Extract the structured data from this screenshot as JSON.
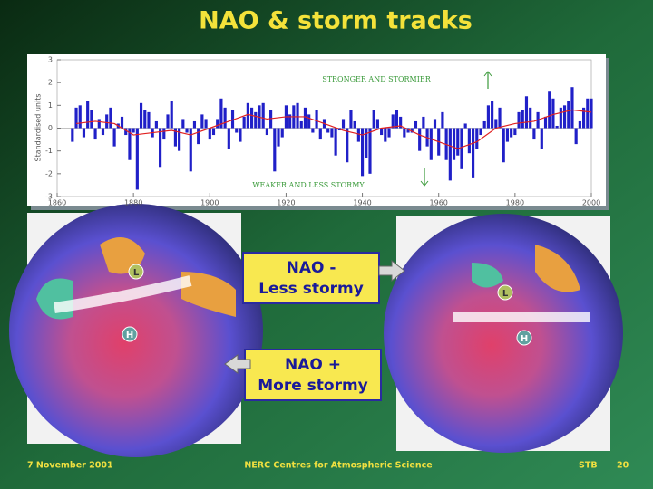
{
  "title": "NAO & storm tracks",
  "chart_data": {
    "type": "bar",
    "y_label": "Standardised units",
    "annotations": [
      "STRONGER AND STORMIER",
      "WEAKER AND LESS STORMY"
    ],
    "xlim": [
      1860,
      2000
    ],
    "xticks": [
      1860,
      1880,
      1900,
      1920,
      1940,
      1960,
      1980,
      2000
    ],
    "ylim": [
      -3,
      3
    ],
    "yticks": [
      -3,
      -2,
      -1,
      0,
      1,
      2,
      3
    ],
    "x": [
      1864,
      1865,
      1866,
      1867,
      1868,
      1869,
      1870,
      1871,
      1872,
      1873,
      1874,
      1875,
      1876,
      1877,
      1878,
      1879,
      1880,
      1881,
      1882,
      1883,
      1884,
      1885,
      1886,
      1887,
      1888,
      1889,
      1890,
      1891,
      1892,
      1893,
      1894,
      1895,
      1896,
      1897,
      1898,
      1899,
      1900,
      1901,
      1902,
      1903,
      1904,
      1905,
      1906,
      1907,
      1908,
      1909,
      1910,
      1911,
      1912,
      1913,
      1914,
      1915,
      1916,
      1917,
      1918,
      1919,
      1920,
      1921,
      1922,
      1923,
      1924,
      1925,
      1926,
      1927,
      1928,
      1929,
      1930,
      1931,
      1932,
      1933,
      1934,
      1935,
      1936,
      1937,
      1938,
      1939,
      1940,
      1941,
      1942,
      1943,
      1944,
      1945,
      1946,
      1947,
      1948,
      1949,
      1950,
      1951,
      1952,
      1953,
      1954,
      1955,
      1956,
      1957,
      1958,
      1959,
      1960,
      1961,
      1962,
      1963,
      1964,
      1965,
      1966,
      1967,
      1968,
      1969,
      1970,
      1971,
      1972,
      1973,
      1974,
      1975,
      1976,
      1977,
      1978,
      1979,
      1980,
      1981,
      1982,
      1983,
      1984,
      1985,
      1986,
      1987,
      1988,
      1989,
      1990,
      1991,
      1992,
      1993,
      1994,
      1995,
      1996,
      1997,
      1998,
      1999,
      2000
    ],
    "series": [
      {
        "type": "bar",
        "color": "#2020c8",
        "values": [
          -0.6,
          0.9,
          1.0,
          -0.4,
          1.2,
          0.8,
          -0.5,
          0.4,
          -0.3,
          0.6,
          0.9,
          -0.8,
          0.2,
          0.5,
          -0.3,
          -1.4,
          -0.2,
          -2.7,
          1.1,
          0.8,
          0.7,
          -0.4,
          0.3,
          -1.7,
          -0.5,
          0.6,
          1.2,
          -0.8,
          -1.0,
          0.4,
          -0.2,
          -1.9,
          0.3,
          -0.7,
          0.6,
          0.4,
          -0.5,
          -0.3,
          0.4,
          1.3,
          0.9,
          -0.9,
          0.8,
          -0.2,
          -0.6,
          0.5,
          1.1,
          0.9,
          0.7,
          1.0,
          1.1,
          -0.3,
          0.8,
          -1.9,
          -0.8,
          -0.4,
          1.0,
          0.6,
          1.0,
          1.1,
          0.3,
          0.9,
          0.6,
          -0.2,
          0.8,
          -0.5,
          0.4,
          -0.2,
          -0.4,
          -1.2,
          -0.1,
          0.4,
          -1.5,
          0.8,
          0.3,
          -0.6,
          -2.1,
          -1.3,
          -2.0,
          0.8,
          0.4,
          -0.3,
          -0.6,
          -0.4,
          0.6,
          0.8,
          0.5,
          -0.4,
          -0.2,
          -0.2,
          0.3,
          -1.0,
          0.5,
          -0.8,
          -1.4,
          0.4,
          -1.2,
          0.7,
          -1.4,
          -2.3,
          -1.4,
          -1.2,
          -1.8,
          0.2,
          -1.1,
          -2.2,
          -0.9,
          -0.3,
          0.3,
          1.0,
          1.2,
          0.4,
          0.9,
          -1.5,
          -0.6,
          -0.4,
          -0.3,
          0.7,
          0.8,
          1.4,
          0.9,
          -0.5,
          0.7,
          -0.9,
          0.5,
          1.6,
          1.3,
          0.1,
          0.9,
          1.0,
          1.2,
          1.8,
          -0.7,
          0.3,
          0.9,
          1.3,
          1.3
        ]
      },
      {
        "type": "line",
        "color": "#e02020",
        "x": [
          1865,
          1870,
          1875,
          1880,
          1885,
          1890,
          1895,
          1900,
          1905,
          1910,
          1915,
          1920,
          1925,
          1930,
          1935,
          1940,
          1945,
          1950,
          1955,
          1960,
          1965,
          1970,
          1975,
          1980,
          1985,
          1990,
          1995,
          2000
        ],
        "values": [
          0.2,
          0.3,
          0.2,
          -0.3,
          -0.2,
          -0.1,
          -0.3,
          0.0,
          0.3,
          0.6,
          0.4,
          0.5,
          0.5,
          0.2,
          -0.1,
          -0.3,
          0.0,
          0.1,
          -0.3,
          -0.6,
          -0.9,
          -0.6,
          0.0,
          0.2,
          0.3,
          0.6,
          0.8,
          0.7
        ]
      }
    ]
  },
  "globe_markers": {
    "low": "L",
    "high": "H"
  },
  "callouts": [
    [
      "NAO -",
      "Less stormy"
    ],
    [
      "NAO +",
      "More stormy"
    ]
  ],
  "footer": {
    "date": "7 November 2001",
    "org": "NERC Centres for Atmospheric Science",
    "author": "STB",
    "page": "20"
  }
}
